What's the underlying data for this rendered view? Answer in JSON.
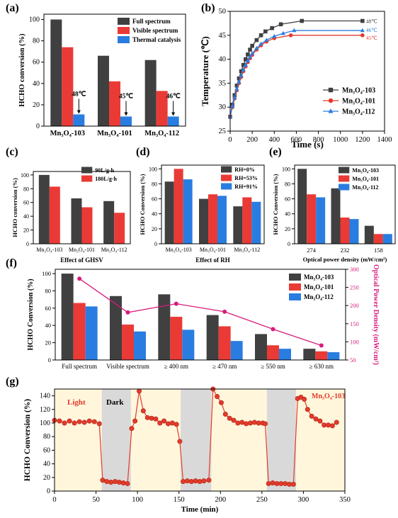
{
  "colors": {
    "dark": "#404040",
    "red": "#ea3a36",
    "blue": "#2a7de0",
    "pink": "#d81b7c",
    "marker_red": "#e23b2a",
    "bg_light": "#fff6dc",
    "bg_dark": "#d9d9d9"
  },
  "chart_data": [
    {
      "panel": "(a)",
      "type": "bar",
      "categories": [
        "Mn₃O₄-103",
        "Mn₃O₄-101",
        "Mn₃O₄-112"
      ],
      "series": [
        {
          "name": "Full spectrum",
          "values": [
            100,
            66,
            62
          ],
          "color": "#404040"
        },
        {
          "name": "Visible spectrum",
          "values": [
            74,
            42,
            33
          ],
          "color": "#ea3a36"
        },
        {
          "name": "Thermal catalysis",
          "values": [
            11,
            9,
            9
          ],
          "color": "#2a7de0"
        }
      ],
      "annotations": [
        "48℃",
        "45℃",
        "46℃"
      ],
      "ylabel": "HCHO conversion (%)",
      "ylim": [
        0,
        105
      ],
      "yticks": [
        0,
        20,
        40,
        60,
        80,
        100
      ],
      "legend": "top-right"
    },
    {
      "panel": "(b)",
      "type": "line",
      "xlabel": "Time (s)",
      "ylabel": "Temperature (℃)",
      "xlim": [
        0,
        1400
      ],
      "ylim": [
        25,
        50
      ],
      "xticks": [
        0,
        200,
        400,
        600,
        800,
        1000,
        1200,
        1400
      ],
      "yticks": [
        25,
        30,
        35,
        40,
        45,
        50
      ],
      "series": [
        {
          "name": "Mn₃O₄-103",
          "color": "#404040",
          "marker": "square",
          "end_label": "48℃",
          "x": [
            0,
            20,
            40,
            60,
            80,
            100,
            120,
            140,
            160,
            180,
            200,
            240,
            280,
            320,
            380,
            460,
            650,
            1200
          ],
          "y": [
            28,
            30.5,
            32.5,
            34.5,
            36,
            37.5,
            38.8,
            40,
            41,
            42,
            42.8,
            44,
            45,
            45.8,
            46.5,
            47.3,
            48,
            48
          ]
        },
        {
          "name": "Mn₃O₄-101",
          "color": "#e23b2a",
          "marker": "circle",
          "end_label": "45℃",
          "x": [
            0,
            20,
            40,
            60,
            80,
            100,
            120,
            140,
            160,
            180,
            200,
            240,
            280,
            330,
            400,
            550,
            1200
          ],
          "y": [
            28,
            30,
            31.8,
            33.5,
            35,
            36.3,
            37.5,
            38.5,
            39.4,
            40.2,
            40.9,
            42,
            42.9,
            43.7,
            44.4,
            45,
            45
          ]
        },
        {
          "name": "Mn₃O₄-112",
          "color": "#2a7de0",
          "marker": "triangle",
          "end_label": "46℃",
          "x": [
            0,
            20,
            40,
            60,
            80,
            100,
            120,
            140,
            160,
            180,
            200,
            240,
            280,
            330,
            400,
            480,
            580,
            1200
          ],
          "y": [
            28,
            30.2,
            32,
            33.8,
            35.3,
            36.6,
            37.8,
            38.8,
            39.7,
            40.5,
            41.2,
            42.3,
            43.2,
            44,
            44.8,
            45.4,
            46,
            46
          ]
        }
      ],
      "legend": "bottom-right"
    },
    {
      "panel": "(c)",
      "type": "bar",
      "categories": [
        "Mn₃O₄-103",
        "Mn₃O₄-101",
        "Mn₃O₄-112"
      ],
      "series": [
        {
          "name": "90L/g·h",
          "values": [
            100,
            66,
            62
          ],
          "color": "#404040"
        },
        {
          "name": "180L/g·h",
          "values": [
            83,
            53,
            45
          ],
          "color": "#ea3a36"
        }
      ],
      "xlabel": "Effect of GHSV",
      "ylabel": "HCHO conversion  (%)",
      "ylim": [
        0,
        105
      ],
      "yticks": [
        0,
        20,
        40,
        60,
        80,
        100
      ],
      "legend": "top-right"
    },
    {
      "panel": "(d)",
      "type": "bar",
      "categories": [
        "Mn₃O₄-103",
        "Mn₃O₄-101",
        "Mn₃O₄-112"
      ],
      "series": [
        {
          "name": "RH=0%",
          "values": [
            83,
            60,
            50
          ],
          "color": "#404040"
        },
        {
          "name": "RH=53%",
          "values": [
            100,
            66,
            62
          ],
          "color": "#ea3a36"
        },
        {
          "name": "RH=91%",
          "values": [
            86,
            64,
            56
          ],
          "color": "#2a7de0"
        }
      ],
      "xlabel": "Effect of RH",
      "ylabel": "HCHO Conversion (%)",
      "ylim": [
        0,
        105
      ],
      "yticks": [
        0,
        20,
        40,
        60,
        80,
        100
      ],
      "legend": "top-right"
    },
    {
      "panel": "(e)",
      "type": "bar",
      "categories": [
        "274",
        "232",
        "158"
      ],
      "series": [
        {
          "name": "Mn₃O₄-103",
          "values": [
            100,
            74,
            24
          ],
          "color": "#404040"
        },
        {
          "name": "Mn₃O₄-101",
          "values": [
            66,
            35,
            13
          ],
          "color": "#ea3a36"
        },
        {
          "name": "Mn₃O₄-112",
          "values": [
            62,
            33,
            13
          ],
          "color": "#2a7de0"
        }
      ],
      "xlabel": "Optical power density (mW/cm²)",
      "ylabel": "HCHO Conversion (%)",
      "ylim": [
        0,
        105
      ],
      "yticks": [
        0,
        20,
        40,
        60,
        80,
        100
      ],
      "legend": "top-right"
    },
    {
      "panel": "(f)",
      "type": "bar",
      "categories": [
        "Full spectrum",
        "Visible spectrum",
        "≥ 400 nm",
        "≥ 470 nm",
        "≥ 550 nm",
        "≥ 630 nm"
      ],
      "series": [
        {
          "name": "Mn₃O₄-103",
          "values": [
            100,
            74,
            76,
            52,
            30,
            13
          ],
          "color": "#404040"
        },
        {
          "name": "Mn₃O₄-101",
          "values": [
            66,
            41,
            50,
            39,
            17,
            10
          ],
          "color": "#ea3a36"
        },
        {
          "name": "Mn₃O₄-112",
          "values": [
            62,
            33,
            35,
            22,
            13,
            9
          ],
          "color": "#2a7de0"
        }
      ],
      "line": {
        "values": [
          274,
          181,
          205,
          183,
          135,
          90
        ],
        "color": "#d81b7c",
        "ylim": [
          50,
          300
        ],
        "yticks": [
          50,
          100,
          150,
          200,
          250,
          300
        ]
      },
      "ylabel": "HCHO Conversion (%)",
      "ylabel_right": "Optical Power Density (mW/cm²)",
      "ylim": [
        0,
        105
      ],
      "yticks": [
        0,
        20,
        40,
        60,
        80,
        100
      ],
      "legend": "top-right"
    },
    {
      "panel": "(g)",
      "type": "line",
      "xlabel": "Time (min)",
      "ylabel": "HCHO Conversion (%)",
      "xlim": [
        0,
        350
      ],
      "ylim": [
        0,
        150
      ],
      "xticks": [
        0,
        50,
        100,
        150,
        200,
        250,
        300,
        350
      ],
      "yticks": [
        0,
        20,
        40,
        60,
        80,
        100,
        120,
        140
      ],
      "dark_intervals": [
        [
          57,
          92
        ],
        [
          152,
          189
        ],
        [
          256,
          291
        ]
      ],
      "labels": [
        "Light",
        "Dark",
        "Mn₃O₄-103"
      ],
      "series": [
        {
          "name": "Mn₃O₄-103",
          "color": "#e23b2a",
          "x": [
            0,
            6,
            12,
            18,
            24,
            30,
            36,
            42,
            48,
            54,
            58,
            63,
            68,
            73,
            78,
            83,
            88,
            93,
            97,
            102,
            107,
            112,
            117,
            122,
            127,
            132,
            137,
            142,
            147,
            151,
            155,
            160,
            165,
            170,
            175,
            180,
            186,
            191,
            196,
            201,
            206,
            211,
            216,
            221,
            226,
            231,
            236,
            241,
            246,
            251,
            254,
            258,
            263,
            268,
            273,
            278,
            283,
            288,
            293,
            297,
            301,
            305,
            310,
            315,
            320,
            325,
            330,
            335,
            340
          ],
          "y": [
            104,
            103,
            100,
            103,
            100,
            102,
            101,
            103,
            102,
            99,
            16,
            14,
            13,
            14,
            13,
            12,
            11,
            92,
            103,
            147,
            118,
            108,
            107,
            106,
            100,
            103,
            99,
            100,
            98,
            73,
            14,
            15,
            14,
            15,
            14,
            15,
            16,
            150,
            139,
            130,
            113,
            107,
            104,
            100,
            101,
            99,
            100,
            101,
            100,
            100,
            99,
            11,
            12,
            11,
            11,
            11,
            10,
            10,
            136,
            138,
            135,
            120,
            110,
            106,
            103,
            97,
            97,
            96,
            101
          ]
        }
      ]
    }
  ],
  "panel_labels": [
    "(a)",
    "(b)",
    "(c)",
    "(d)",
    "(e)",
    "(f)",
    "(g)"
  ]
}
